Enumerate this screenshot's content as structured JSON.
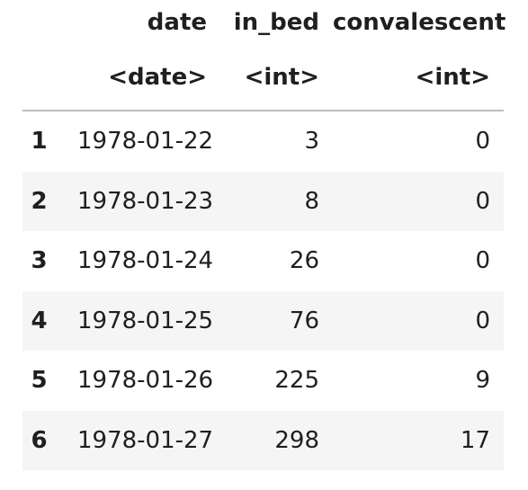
{
  "table": {
    "columns": [
      {
        "name": "date",
        "type": "<date>"
      },
      {
        "name": "in_bed",
        "type": "<int>"
      },
      {
        "name": "convalescent",
        "type": "<int>"
      }
    ],
    "rows": [
      {
        "index": "1",
        "date": "1978-01-22",
        "in_bed": "3",
        "convalescent": "0"
      },
      {
        "index": "2",
        "date": "1978-01-23",
        "in_bed": "8",
        "convalescent": "0"
      },
      {
        "index": "3",
        "date": "1978-01-24",
        "in_bed": "26",
        "convalescent": "0"
      },
      {
        "index": "4",
        "date": "1978-01-25",
        "in_bed": "76",
        "convalescent": "0"
      },
      {
        "index": "5",
        "date": "1978-01-26",
        "in_bed": "225",
        "convalescent": "9"
      },
      {
        "index": "6",
        "date": "1978-01-27",
        "in_bed": "298",
        "convalescent": "17"
      }
    ]
  },
  "colors": {
    "striped_row": "#f5f5f5",
    "header_rule": "#bdbdbd",
    "text": "#1f1f1f"
  }
}
